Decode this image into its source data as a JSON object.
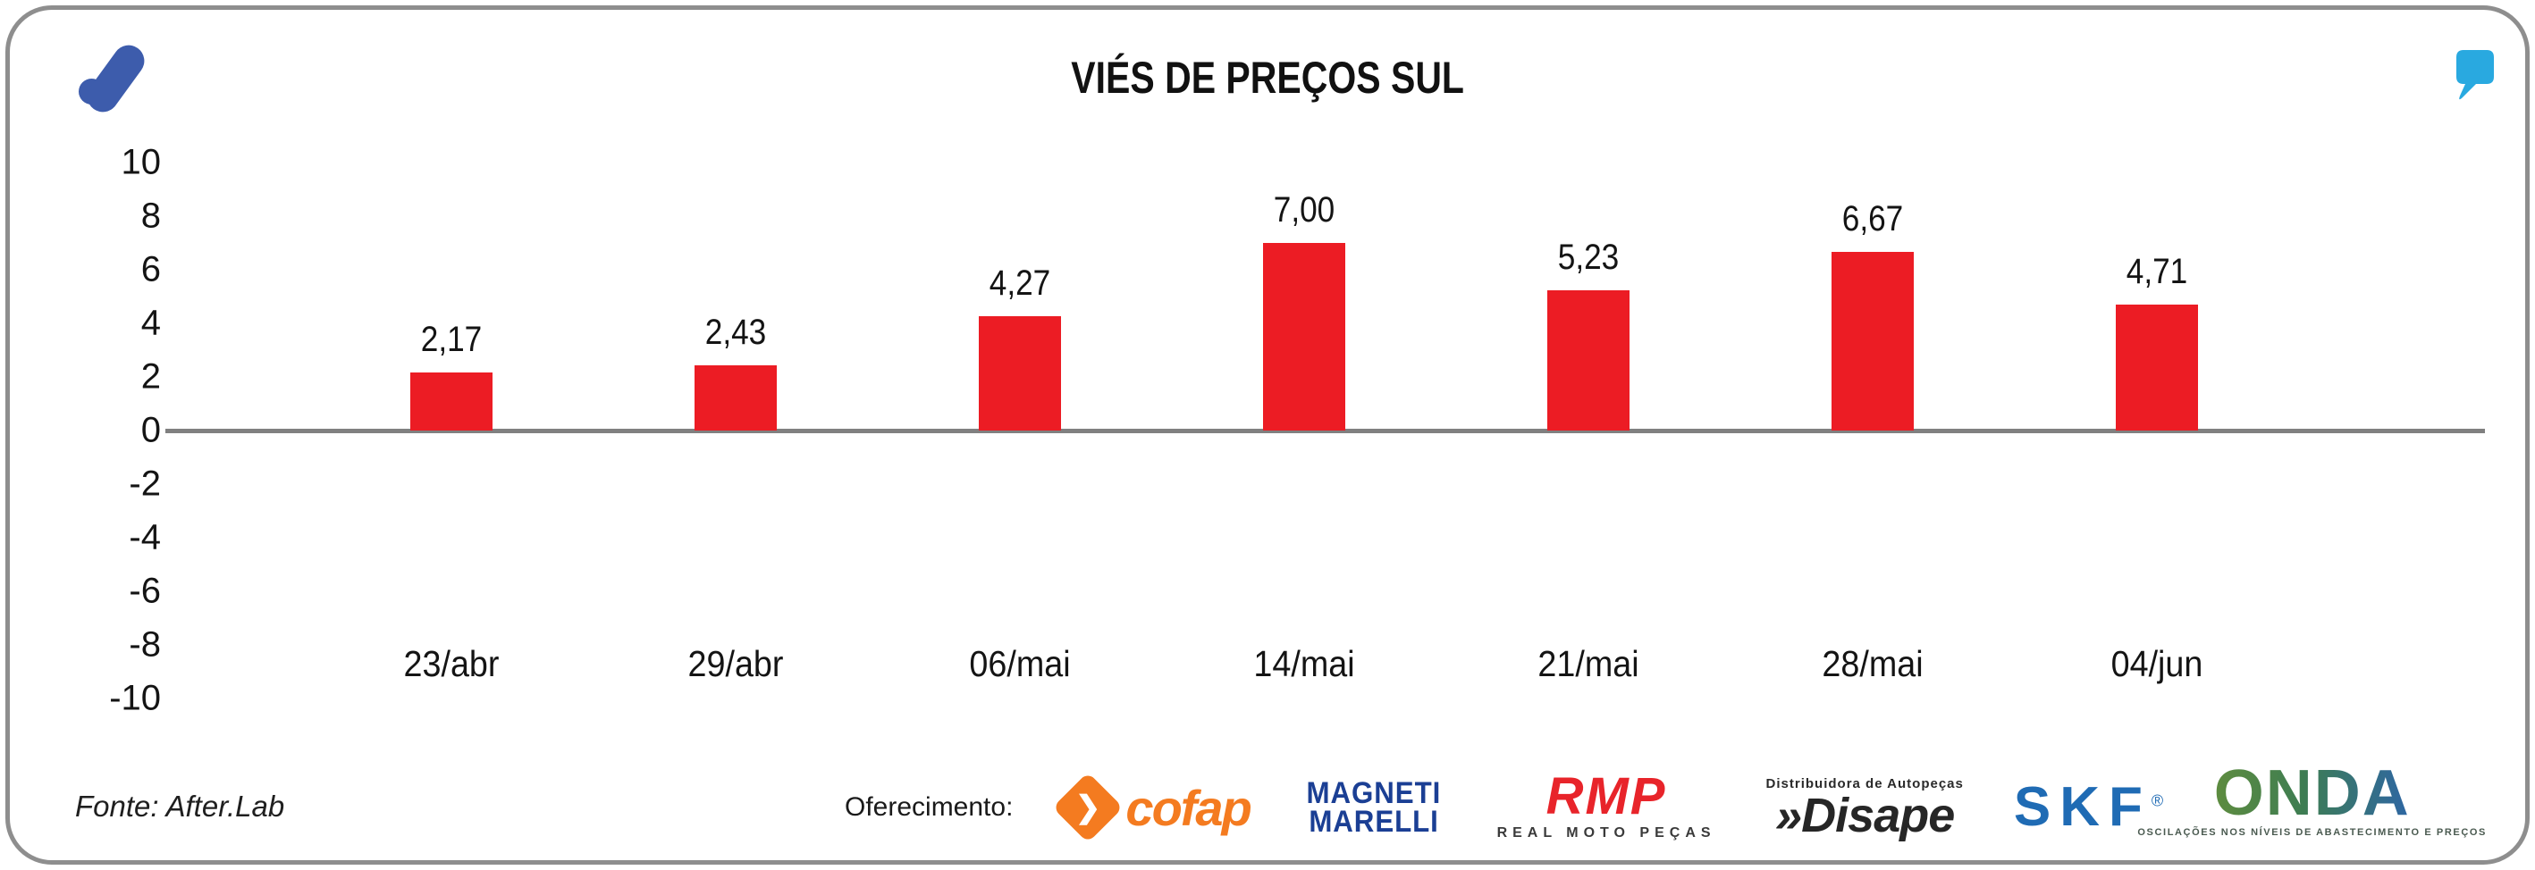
{
  "header": {
    "title": "VIÉS DE PREÇOS SUL",
    "brand_mark": "after-lab-logo",
    "brand_color": "#3d5cac",
    "quote_mark_color": "#29a9e0"
  },
  "chart_data": {
    "type": "bar",
    "title": "VIÉS DE PREÇOS SUL",
    "categories": [
      "23/abr",
      "29/abr",
      "06/mai",
      "14/mai",
      "21/mai",
      "28/mai",
      "04/jun"
    ],
    "values": [
      2.17,
      2.43,
      4.27,
      7.0,
      5.23,
      6.67,
      4.71
    ],
    "value_labels": [
      "2,17",
      "2,43",
      "4,27",
      "7,00",
      "5,23",
      "6,67",
      "4,71"
    ],
    "ylim": [
      -10,
      10
    ],
    "yticks": [
      10,
      8,
      6,
      4,
      2,
      0,
      -2,
      -4,
      -6,
      -8,
      -10
    ],
    "bar_color": "#ec1c24",
    "axis_line_color": "#808080",
    "grid": false,
    "legend": "none",
    "xlabel": "",
    "ylabel": ""
  },
  "footer": {
    "source": "Fonte: After.Lab",
    "sponsor_label": "Oferecimento:",
    "sponsors": {
      "cofap": {
        "name": "cofap",
        "color": "#f47b20",
        "icon_glyph": "❯"
      },
      "magneti": {
        "line1": "MAGNETI",
        "line2": "MARELLI",
        "color": "#1b3f94"
      },
      "rmp": {
        "name": "RMP",
        "subtext": "REAL MOTO PEÇAS",
        "color": "#e8242a"
      },
      "disape": {
        "subtext": "Distribuidora de Autopeças",
        "name": "»Disape",
        "color": "#262626"
      },
      "skf": {
        "name": "SKF",
        "reg": "®",
        "color": "#1f6bb4"
      }
    },
    "onda": {
      "name": "ONDA",
      "tagline": "OSCILAÇÕES NOS NÍVEIS DE ABASTECIMENTO E PREÇOS"
    }
  }
}
